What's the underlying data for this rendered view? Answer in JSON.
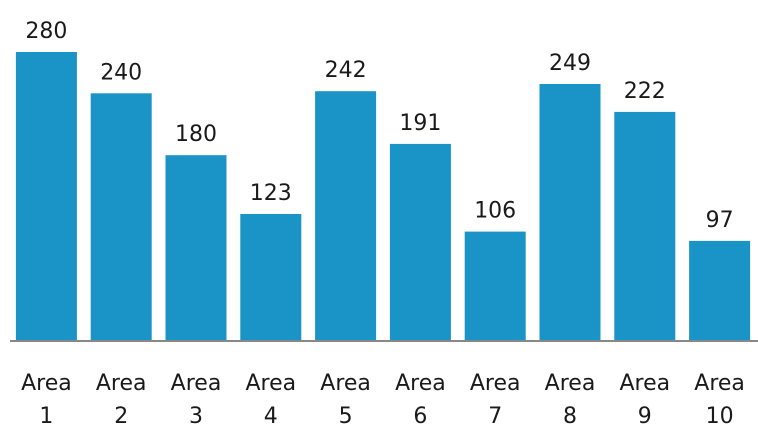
{
  "chart_data": {
    "type": "bar",
    "title": "",
    "xlabel": "",
    "ylabel": "",
    "ylim": [
      0,
      280
    ],
    "grid": false,
    "legend": "none",
    "categories": [
      [
        "Area",
        "1"
      ],
      [
        "Area",
        "2"
      ],
      [
        "Area",
        "3"
      ],
      [
        "Area",
        "4"
      ],
      [
        "Area",
        "5"
      ],
      [
        "Area",
        "6"
      ],
      [
        "Area",
        "7"
      ],
      [
        "Area",
        "8"
      ],
      [
        "Area",
        "9"
      ],
      [
        "Area",
        "10"
      ]
    ],
    "values": [
      280,
      240,
      180,
      123,
      242,
      191,
      106,
      249,
      222,
      97
    ],
    "data_labels": [
      "280",
      "240",
      "180",
      "123",
      "242",
      "191",
      "106",
      "249",
      "222",
      "97"
    ],
    "bar_color": "#1a93c6",
    "axis_color": "#888888"
  }
}
